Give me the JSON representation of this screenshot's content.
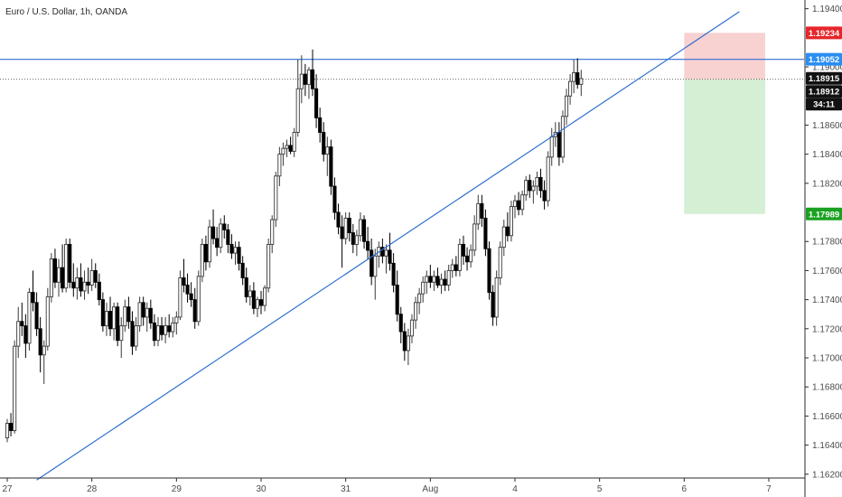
{
  "chart_data": {
    "type": "candlestick",
    "title": "Euro / U.S. Dollar, 1h, OANDA",
    "x_ticks": [
      "27",
      "28",
      "29",
      "30",
      "31",
      "Aug",
      "4",
      "5",
      "6",
      "7"
    ],
    "x_tick_times": [
      0,
      23,
      46,
      69,
      92,
      115,
      138,
      161,
      184,
      207
    ],
    "y_ticks": [
      "1.19400",
      "1.19000",
      "1.18600",
      "1.18400",
      "1.18200",
      "1.17800",
      "1.17600",
      "1.17400",
      "1.17200",
      "1.17000",
      "1.16800",
      "1.16600",
      "1.16400",
      "1.16200"
    ],
    "ylim": [
      1.1618,
      1.1946
    ],
    "xlim": [
      0,
      219
    ],
    "colors": {
      "up": "#3a3a3a",
      "down": "#000000",
      "trendline": "#2f6fd1",
      "stop_zone": "#f7c9c9",
      "target_zone": "#cdeccd",
      "stop_badge": "#e5262b",
      "target_badge": "#1aa121",
      "resistance_badge": "#2a8ef2",
      "price_badge": "#111111"
    },
    "levels": {
      "resistance": "1.19052",
      "stop": "1.19234",
      "current_dotted": "1.18915",
      "last_price": "1.18912",
      "countdown": "34:11",
      "target": "1.17989"
    },
    "trendline": {
      "start": {
        "t": 8,
        "price": 1.1616
      },
      "end": {
        "t": 199,
        "price": 1.1938
      }
    },
    "position": {
      "t_start": 184,
      "t_end": 206,
      "entry": 1.18915,
      "stop": 1.19234,
      "target": 1.17989
    },
    "candles": [
      [
        0,
        1.1645,
        1.1658,
        1.1642,
        1.1655
      ],
      [
        1,
        1.1655,
        1.1662,
        1.1646,
        1.165
      ],
      [
        2,
        1.165,
        1.1712,
        1.1648,
        1.1708
      ],
      [
        3,
        1.1708,
        1.1735,
        1.17,
        1.1725
      ],
      [
        4,
        1.1725,
        1.1738,
        1.1715,
        1.1722
      ],
      [
        5,
        1.1722,
        1.173,
        1.17,
        1.171
      ],
      [
        6,
        1.171,
        1.1748,
        1.1705,
        1.1745
      ],
      [
        7,
        1.1745,
        1.176,
        1.1732,
        1.1738
      ],
      [
        8,
        1.1738,
        1.1745,
        1.1715,
        1.172
      ],
      [
        9,
        1.172,
        1.1728,
        1.169,
        1.1702
      ],
      [
        10,
        1.1702,
        1.1712,
        1.1682,
        1.1708
      ],
      [
        11,
        1.1708,
        1.1748,
        1.1705,
        1.1742
      ],
      [
        12,
        1.1742,
        1.1772,
        1.1738,
        1.1768
      ],
      [
        13,
        1.1768,
        1.1775,
        1.1748,
        1.1752
      ],
      [
        14,
        1.1752,
        1.1768,
        1.1742,
        1.1762
      ],
      [
        15,
        1.1762,
        1.1778,
        1.1745,
        1.1748
      ],
      [
        16,
        1.1748,
        1.1782,
        1.1745,
        1.1778
      ],
      [
        17,
        1.1778,
        1.1782,
        1.1748,
        1.1752
      ],
      [
        18,
        1.1752,
        1.1765,
        1.1742,
        1.1748
      ],
      [
        19,
        1.1748,
        1.1762,
        1.174,
        1.1755
      ],
      [
        20,
        1.1755,
        1.1765,
        1.1742,
        1.1746
      ],
      [
        21,
        1.1746,
        1.176,
        1.174,
        1.1752
      ],
      [
        22,
        1.1752,
        1.1762,
        1.1744,
        1.175
      ],
      [
        23,
        1.175,
        1.1768,
        1.1746,
        1.176
      ],
      [
        24,
        1.176,
        1.1765,
        1.1748,
        1.1752
      ],
      [
        25,
        1.1752,
        1.1758,
        1.1736,
        1.174
      ],
      [
        26,
        1.174,
        1.1745,
        1.1718,
        1.1722
      ],
      [
        27,
        1.1722,
        1.1738,
        1.1715,
        1.1732
      ],
      [
        28,
        1.1732,
        1.1742,
        1.1715,
        1.172
      ],
      [
        29,
        1.172,
        1.1738,
        1.1712,
        1.1735
      ],
      [
        30,
        1.1735,
        1.1738,
        1.1708,
        1.1712
      ],
      [
        31,
        1.1712,
        1.1728,
        1.17,
        1.1722
      ],
      [
        32,
        1.1722,
        1.174,
        1.1718,
        1.1735
      ],
      [
        33,
        1.1735,
        1.1742,
        1.172,
        1.1725
      ],
      [
        34,
        1.1725,
        1.1732,
        1.1702,
        1.1708
      ],
      [
        35,
        1.1708,
        1.1728,
        1.1705,
        1.1722
      ],
      [
        36,
        1.1722,
        1.1742,
        1.1718,
        1.1738
      ],
      [
        37,
        1.1738,
        1.1742,
        1.1722,
        1.1728
      ],
      [
        38,
        1.1728,
        1.1738,
        1.1718,
        1.1734
      ],
      [
        39,
        1.1734,
        1.174,
        1.172,
        1.1724
      ],
      [
        40,
        1.1724,
        1.173,
        1.1708,
        1.1712
      ],
      [
        41,
        1.1712,
        1.1728,
        1.1708,
        1.1722
      ],
      [
        42,
        1.1722,
        1.1728,
        1.1712,
        1.1716
      ],
      [
        43,
        1.1716,
        1.1728,
        1.171,
        1.1722
      ],
      [
        44,
        1.1722,
        1.173,
        1.1714,
        1.1718
      ],
      [
        45,
        1.1718,
        1.1728,
        1.1714,
        1.1724
      ],
      [
        46,
        1.1724,
        1.1732,
        1.1716,
        1.1728
      ],
      [
        47,
        1.1728,
        1.176,
        1.1726,
        1.1755
      ],
      [
        48,
        1.1755,
        1.1768,
        1.1745,
        1.175
      ],
      [
        49,
        1.175,
        1.1758,
        1.1738,
        1.1744
      ],
      [
        50,
        1.1744,
        1.1752,
        1.1735,
        1.174
      ],
      [
        51,
        1.174,
        1.1748,
        1.172,
        1.1725
      ],
      [
        52,
        1.1725,
        1.176,
        1.1722,
        1.1756
      ],
      [
        53,
        1.1756,
        1.1782,
        1.1752,
        1.1778
      ],
      [
        54,
        1.1778,
        1.1784,
        1.176,
        1.1766
      ],
      [
        55,
        1.1766,
        1.1795,
        1.1762,
        1.179
      ],
      [
        56,
        1.179,
        1.1802,
        1.1778,
        1.1782
      ],
      [
        57,
        1.1782,
        1.179,
        1.177,
        1.1776
      ],
      [
        58,
        1.1776,
        1.1796,
        1.1772,
        1.1792
      ],
      [
        59,
        1.1792,
        1.1798,
        1.1782,
        1.1788
      ],
      [
        60,
        1.1788,
        1.1792,
        1.1772,
        1.1778
      ],
      [
        61,
        1.1778,
        1.1785,
        1.1768,
        1.1772
      ],
      [
        62,
        1.1772,
        1.178,
        1.1764,
        1.1776
      ],
      [
        63,
        1.1776,
        1.178,
        1.176,
        1.1765
      ],
      [
        64,
        1.1765,
        1.177,
        1.175,
        1.1755
      ],
      [
        65,
        1.1755,
        1.1762,
        1.1738,
        1.1742
      ],
      [
        66,
        1.1742,
        1.175,
        1.1736,
        1.1746
      ],
      [
        67,
        1.1746,
        1.1752,
        1.173,
        1.1734
      ],
      [
        68,
        1.1734,
        1.1742,
        1.1728,
        1.174
      ],
      [
        69,
        1.174,
        1.1746,
        1.173,
        1.1736
      ],
      [
        70,
        1.1736,
        1.175,
        1.1732,
        1.1748
      ],
      [
        71,
        1.1748,
        1.1782,
        1.1745,
        1.1778
      ],
      [
        72,
        1.1778,
        1.1798,
        1.1772,
        1.1795
      ],
      [
        73,
        1.1795,
        1.1828,
        1.179,
        1.1825
      ],
      [
        74,
        1.1825,
        1.1845,
        1.1818,
        1.184
      ],
      [
        75,
        1.184,
        1.1848,
        1.1832,
        1.1844
      ],
      [
        76,
        1.1844,
        1.185,
        1.1838,
        1.1846
      ],
      [
        77,
        1.1846,
        1.1852,
        1.184,
        1.1842
      ],
      [
        78,
        1.1842,
        1.1858,
        1.1838,
        1.1855
      ],
      [
        79,
        1.1855,
        1.1905,
        1.1852,
        1.1885
      ],
      [
        80,
        1.1885,
        1.1908,
        1.1875,
        1.1895
      ],
      [
        81,
        1.1895,
        1.1902,
        1.188,
        1.1888
      ],
      [
        82,
        1.1888,
        1.19,
        1.1878,
        1.1898
      ],
      [
        83,
        1.1898,
        1.1912,
        1.188,
        1.1885
      ],
      [
        84,
        1.1885,
        1.1895,
        1.1858,
        1.1865
      ],
      [
        85,
        1.1865,
        1.1872,
        1.1848,
        1.1855
      ],
      [
        86,
        1.1855,
        1.1862,
        1.1835,
        1.184
      ],
      [
        87,
        1.184,
        1.1852,
        1.1825,
        1.1845
      ],
      [
        88,
        1.1845,
        1.185,
        1.1812,
        1.1818
      ],
      [
        89,
        1.1818,
        1.1824,
        1.1795,
        1.18
      ],
      [
        90,
        1.18,
        1.1806,
        1.1785,
        1.179
      ],
      [
        91,
        1.179,
        1.1798,
        1.1762,
        1.1782
      ],
      [
        92,
        1.1782,
        1.18,
        1.1778,
        1.1796
      ],
      [
        93,
        1.1796,
        1.18,
        1.178,
        1.1786
      ],
      [
        94,
        1.1786,
        1.1792,
        1.1772,
        1.1778
      ],
      [
        95,
        1.1778,
        1.1788,
        1.177,
        1.1784
      ],
      [
        96,
        1.1784,
        1.18,
        1.178,
        1.1795
      ],
      [
        97,
        1.1795,
        1.1798,
        1.1775,
        1.178
      ],
      [
        98,
        1.178,
        1.179,
        1.1768,
        1.1774
      ],
      [
        99,
        1.1774,
        1.1782,
        1.175,
        1.1756
      ],
      [
        100,
        1.1756,
        1.1775,
        1.174,
        1.177
      ],
      [
        101,
        1.177,
        1.178,
        1.1762,
        1.1776
      ],
      [
        102,
        1.1776,
        1.1782,
        1.1765,
        1.177
      ],
      [
        103,
        1.177,
        1.1778,
        1.1758,
        1.1774
      ],
      [
        104,
        1.1774,
        1.1786,
        1.176,
        1.1765
      ],
      [
        105,
        1.1765,
        1.1772,
        1.1745,
        1.175
      ],
      [
        106,
        1.175,
        1.176,
        1.1725,
        1.173
      ],
      [
        107,
        1.173,
        1.1735,
        1.171,
        1.1718
      ],
      [
        108,
        1.1718,
        1.1724,
        1.1698,
        1.1705
      ],
      [
        109,
        1.1705,
        1.172,
        1.1695,
        1.1715
      ],
      [
        110,
        1.1715,
        1.173,
        1.171,
        1.1726
      ],
      [
        111,
        1.1726,
        1.1742,
        1.172,
        1.1738
      ],
      [
        112,
        1.1738,
        1.1748,
        1.173,
        1.1744
      ],
      [
        113,
        1.1744,
        1.1756,
        1.1738,
        1.1752
      ],
      [
        114,
        1.1752,
        1.176,
        1.1744,
        1.1756
      ],
      [
        115,
        1.1756,
        1.1764,
        1.1748,
        1.1752
      ],
      [
        116,
        1.1752,
        1.176,
        1.1746,
        1.1756
      ],
      [
        117,
        1.1756,
        1.1762,
        1.1748,
        1.175
      ],
      [
        118,
        1.175,
        1.1758,
        1.1744,
        1.1754
      ],
      [
        119,
        1.1754,
        1.176,
        1.1746,
        1.175
      ],
      [
        120,
        1.175,
        1.1764,
        1.1746,
        1.176
      ],
      [
        121,
        1.176,
        1.1768,
        1.1755,
        1.1764
      ],
      [
        122,
        1.1764,
        1.177,
        1.1756,
        1.176
      ],
      [
        123,
        1.176,
        1.1782,
        1.1756,
        1.1778
      ],
      [
        124,
        1.1778,
        1.1784,
        1.1764,
        1.177
      ],
      [
        125,
        1.177,
        1.1776,
        1.176,
        1.1766
      ],
      [
        126,
        1.1766,
        1.1778,
        1.1762,
        1.1774
      ],
      [
        127,
        1.1774,
        1.1798,
        1.177,
        1.1792
      ],
      [
        128,
        1.1792,
        1.1812,
        1.1788,
        1.1806
      ],
      [
        129,
        1.1806,
        1.1812,
        1.179,
        1.1796
      ],
      [
        130,
        1.1796,
        1.1802,
        1.177,
        1.1775
      ],
      [
        131,
        1.1775,
        1.178,
        1.174,
        1.1745
      ],
      [
        132,
        1.1745,
        1.175,
        1.1722,
        1.1728
      ],
      [
        133,
        1.1728,
        1.176,
        1.1722,
        1.1755
      ],
      [
        134,
        1.1755,
        1.178,
        1.175,
        1.1776
      ],
      [
        135,
        1.1776,
        1.1795,
        1.177,
        1.179
      ],
      [
        136,
        1.179,
        1.18,
        1.178,
        1.1784
      ],
      [
        137,
        1.1784,
        1.1808,
        1.178,
        1.1804
      ],
      [
        138,
        1.1804,
        1.1812,
        1.1796,
        1.1808
      ],
      [
        139,
        1.1808,
        1.1814,
        1.1798,
        1.1802
      ],
      [
        140,
        1.1802,
        1.1815,
        1.1798,
        1.1812
      ],
      [
        141,
        1.1812,
        1.1825,
        1.1808,
        1.1822
      ],
      [
        142,
        1.1822,
        1.1826,
        1.181,
        1.1815
      ],
      [
        143,
        1.1815,
        1.1822,
        1.1806,
        1.1818
      ],
      [
        144,
        1.1818,
        1.1828,
        1.1812,
        1.1824
      ],
      [
        145,
        1.1824,
        1.183,
        1.181,
        1.1815
      ],
      [
        146,
        1.1815,
        1.1822,
        1.1802,
        1.1808
      ],
      [
        147,
        1.1808,
        1.1842,
        1.1804,
        1.1838
      ],
      [
        148,
        1.1838,
        1.1858,
        1.1832,
        1.1852
      ],
      [
        149,
        1.1852,
        1.1862,
        1.1845,
        1.1855
      ],
      [
        150,
        1.1855,
        1.1862,
        1.1832,
        1.1838
      ],
      [
        151,
        1.1838,
        1.187,
        1.1834,
        1.1866
      ],
      [
        152,
        1.1866,
        1.1885,
        1.186,
        1.188
      ],
      [
        153,
        1.188,
        1.1895,
        1.1874,
        1.189
      ],
      [
        154,
        1.189,
        1.1905,
        1.1882,
        1.1896
      ],
      [
        155,
        1.1896,
        1.1906,
        1.1885,
        1.1888
      ],
      [
        156,
        1.1888,
        1.1898,
        1.188,
        1.1892
      ]
    ]
  }
}
